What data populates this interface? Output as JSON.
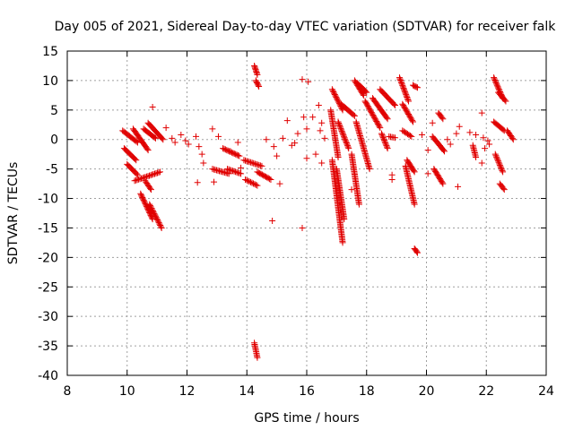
{
  "chart_data": {
    "type": "scatter",
    "title": "Day 005 of 2021, Sidereal Day-to-day VTEC variation (SDTVAR) for receiver falk",
    "xlabel": "GPS time / hours",
    "ylabel": "SDTVAR / TECUs",
    "xlim": [
      8,
      24
    ],
    "ylim": [
      -40,
      15
    ],
    "xticks": [
      8,
      10,
      12,
      14,
      16,
      18,
      20,
      22,
      24
    ],
    "yticks": [
      15,
      10,
      5,
      0,
      -5,
      -10,
      -15,
      -20,
      -25,
      -30,
      -35,
      -40
    ],
    "grid": true,
    "marker": "plus",
    "color": "#e00000",
    "tracks": [
      {
        "x0": 9.85,
        "x1": 10.35,
        "y0": 1.5,
        "y1": -0.5
      },
      {
        "x0": 9.9,
        "x1": 10.3,
        "y0": -1.5,
        "y1": -3.5
      },
      {
        "x0": 10.2,
        "x1": 10.7,
        "y0": 1.8,
        "y1": -1.8
      },
      {
        "x0": 10.0,
        "x1": 10.35,
        "y0": -4.2,
        "y1": -6.0
      },
      {
        "x0": 10.25,
        "x1": 11.1,
        "y0": -7.0,
        "y1": -5.5
      },
      {
        "x0": 10.55,
        "x1": 10.95,
        "y0": 1.8,
        "y1": 0.2
      },
      {
        "x0": 10.7,
        "x1": 11.2,
        "y0": 2.8,
        "y1": 0.0
      },
      {
        "x0": 10.45,
        "x1": 10.85,
        "y0": -9.2,
        "y1": -13.5
      },
      {
        "x0": 10.75,
        "x1": 11.15,
        "y0": -11.0,
        "y1": -15.0
      },
      {
        "x0": 10.6,
        "x1": 10.8,
        "y0": -7.0,
        "y1": -8.5
      },
      {
        "x0": 12.85,
        "x1": 13.4,
        "y0": -5.0,
        "y1": -5.8
      },
      {
        "x0": 13.35,
        "x1": 13.8,
        "y0": -5.0,
        "y1": -5.8
      },
      {
        "x0": 13.2,
        "x1": 13.75,
        "y0": -1.5,
        "y1": -2.8
      },
      {
        "x0": 13.9,
        "x1": 14.5,
        "y0": -3.5,
        "y1": -4.5
      },
      {
        "x0": 13.95,
        "x1": 14.35,
        "y0": -6.8,
        "y1": -7.8
      },
      {
        "x0": 14.35,
        "x1": 14.8,
        "y0": -5.5,
        "y1": -6.8
      },
      {
        "x0": 14.25,
        "x1": 14.35,
        "y0": 12.5,
        "y1": 11.0
      },
      {
        "x0": 14.3,
        "x1": 14.4,
        "y0": 10.0,
        "y1": 9.0
      },
      {
        "x0": 14.25,
        "x1": 14.35,
        "y0": -34.5,
        "y1": -37.0
      },
      {
        "x0": 16.8,
        "x1": 17.05,
        "y0": 5.0,
        "y1": -3.0
      },
      {
        "x0": 16.85,
        "x1": 17.2,
        "y0": 8.5,
        "y1": 5.0
      },
      {
        "x0": 16.85,
        "x1": 17.2,
        "y0": -3.5,
        "y1": -17.5
      },
      {
        "x0": 17.0,
        "x1": 17.25,
        "y0": -5.0,
        "y1": -13.5
      },
      {
        "x0": 17.05,
        "x1": 17.4,
        "y0": 3.0,
        "y1": -1.5
      },
      {
        "x0": 17.15,
        "x1": 17.6,
        "y0": 6.0,
        "y1": 4.0
      },
      {
        "x0": 17.6,
        "x1": 17.9,
        "y0": 10.0,
        "y1": 7.5
      },
      {
        "x0": 17.7,
        "x1": 18.0,
        "y0": 9.5,
        "y1": 8.0
      },
      {
        "x0": 17.5,
        "x1": 17.75,
        "y0": -2.5,
        "y1": -11.0
      },
      {
        "x0": 17.65,
        "x1": 18.1,
        "y0": 3.0,
        "y1": -5.0
      },
      {
        "x0": 17.95,
        "x1": 18.45,
        "y0": 6.5,
        "y1": 2.0
      },
      {
        "x0": 18.2,
        "x1": 18.7,
        "y0": 7.0,
        "y1": 3.5
      },
      {
        "x0": 18.45,
        "x1": 18.95,
        "y0": 8.5,
        "y1": 5.8
      },
      {
        "x0": 18.5,
        "x1": 18.7,
        "y0": 1.0,
        "y1": -1.5
      },
      {
        "x0": 18.75,
        "x1": 18.95,
        "y0": 0.5,
        "y1": 0.3
      },
      {
        "x0": 19.1,
        "x1": 19.4,
        "y0": 10.5,
        "y1": 6.5
      },
      {
        "x0": 19.2,
        "x1": 19.55,
        "y0": 6.0,
        "y1": 3.0
      },
      {
        "x0": 19.3,
        "x1": 19.6,
        "y0": -4.5,
        "y1": -11.0
      },
      {
        "x0": 19.35,
        "x1": 19.6,
        "y0": -3.5,
        "y1": -5.5
      },
      {
        "x0": 19.2,
        "x1": 19.5,
        "y0": 1.5,
        "y1": 0.5
      },
      {
        "x0": 19.6,
        "x1": 19.7,
        "y0": -18.5,
        "y1": -19.2
      },
      {
        "x0": 19.55,
        "x1": 19.7,
        "y0": 9.2,
        "y1": 8.8
      },
      {
        "x0": 20.2,
        "x1": 20.6,
        "y0": 0.5,
        "y1": -2.0
      },
      {
        "x0": 20.25,
        "x1": 20.55,
        "y0": -5.0,
        "y1": -7.5
      },
      {
        "x0": 20.4,
        "x1": 20.55,
        "y0": 4.5,
        "y1": 3.5
      },
      {
        "x0": 21.55,
        "x1": 21.65,
        "y0": -1.0,
        "y1": -3.0
      },
      {
        "x0": 22.25,
        "x1": 22.55,
        "y0": 10.5,
        "y1": 7.0
      },
      {
        "x0": 22.4,
        "x1": 22.65,
        "y0": 8.0,
        "y1": 6.5
      },
      {
        "x0": 22.25,
        "x1": 22.6,
        "y0": 3.0,
        "y1": 1.5
      },
      {
        "x0": 22.3,
        "x1": 22.55,
        "y0": -2.5,
        "y1": -5.5
      },
      {
        "x0": 22.45,
        "x1": 22.6,
        "y0": -7.5,
        "y1": -8.5
      },
      {
        "x0": 22.7,
        "x1": 22.9,
        "y0": 1.5,
        "y1": 0.0
      }
    ],
    "scattered": [
      [
        10.85,
        5.5
      ],
      [
        11.3,
        2.0
      ],
      [
        11.5,
        0.2
      ],
      [
        11.6,
        -0.5
      ],
      [
        11.8,
        0.8
      ],
      [
        11.95,
        -0.2
      ],
      [
        12.05,
        -0.8
      ],
      [
        12.3,
        0.5
      ],
      [
        12.4,
        -1.2
      ],
      [
        12.5,
        -2.5
      ],
      [
        12.55,
        -4.0
      ],
      [
        12.35,
        -7.3
      ],
      [
        12.85,
        1.8
      ],
      [
        12.9,
        -7.2
      ],
      [
        13.05,
        0.5
      ],
      [
        13.45,
        -2.0
      ],
      [
        13.7,
        -0.5
      ],
      [
        13.8,
        -4.8
      ],
      [
        15.0,
        -2.8
      ],
      [
        15.2,
        0.2
      ],
      [
        15.35,
        3.2
      ],
      [
        15.5,
        -1.0
      ],
      [
        15.6,
        -0.6
      ],
      [
        15.7,
        1.0
      ],
      [
        15.9,
        3.8
      ],
      [
        16.0,
        -3.2
      ],
      [
        16.2,
        3.8
      ],
      [
        16.4,
        5.8
      ],
      [
        16.5,
        2.8
      ],
      [
        16.45,
        1.5
      ],
      [
        16.6,
        0.2
      ],
      [
        16.3,
        -2.5
      ],
      [
        15.1,
        -7.5
      ],
      [
        14.85,
        -13.8
      ],
      [
        15.85,
        -15.0
      ],
      [
        15.85,
        10.2
      ],
      [
        16.05,
        9.8
      ],
      [
        14.65,
        0.0
      ],
      [
        14.9,
        -1.2
      ],
      [
        16.0,
        1.8
      ],
      [
        16.5,
        -4.0
      ],
      [
        17.5,
        -8.5
      ],
      [
        18.85,
        -6.0
      ],
      [
        18.85,
        -6.8
      ],
      [
        19.85,
        0.8
      ],
      [
        20.05,
        -1.8
      ],
      [
        20.05,
        -5.8
      ],
      [
        20.2,
        2.8
      ],
      [
        20.7,
        0.0
      ],
      [
        20.8,
        -0.8
      ],
      [
        21.0,
        1.0
      ],
      [
        21.05,
        -8.0
      ],
      [
        21.1,
        2.2
      ],
      [
        21.45,
        1.2
      ],
      [
        21.65,
        0.8
      ],
      [
        21.9,
        0.3
      ],
      [
        21.85,
        4.5
      ],
      [
        21.95,
        -1.5
      ],
      [
        22.05,
        -0.2
      ],
      [
        22.1,
        -0.8
      ],
      [
        21.85,
        -4.0
      ]
    ]
  }
}
